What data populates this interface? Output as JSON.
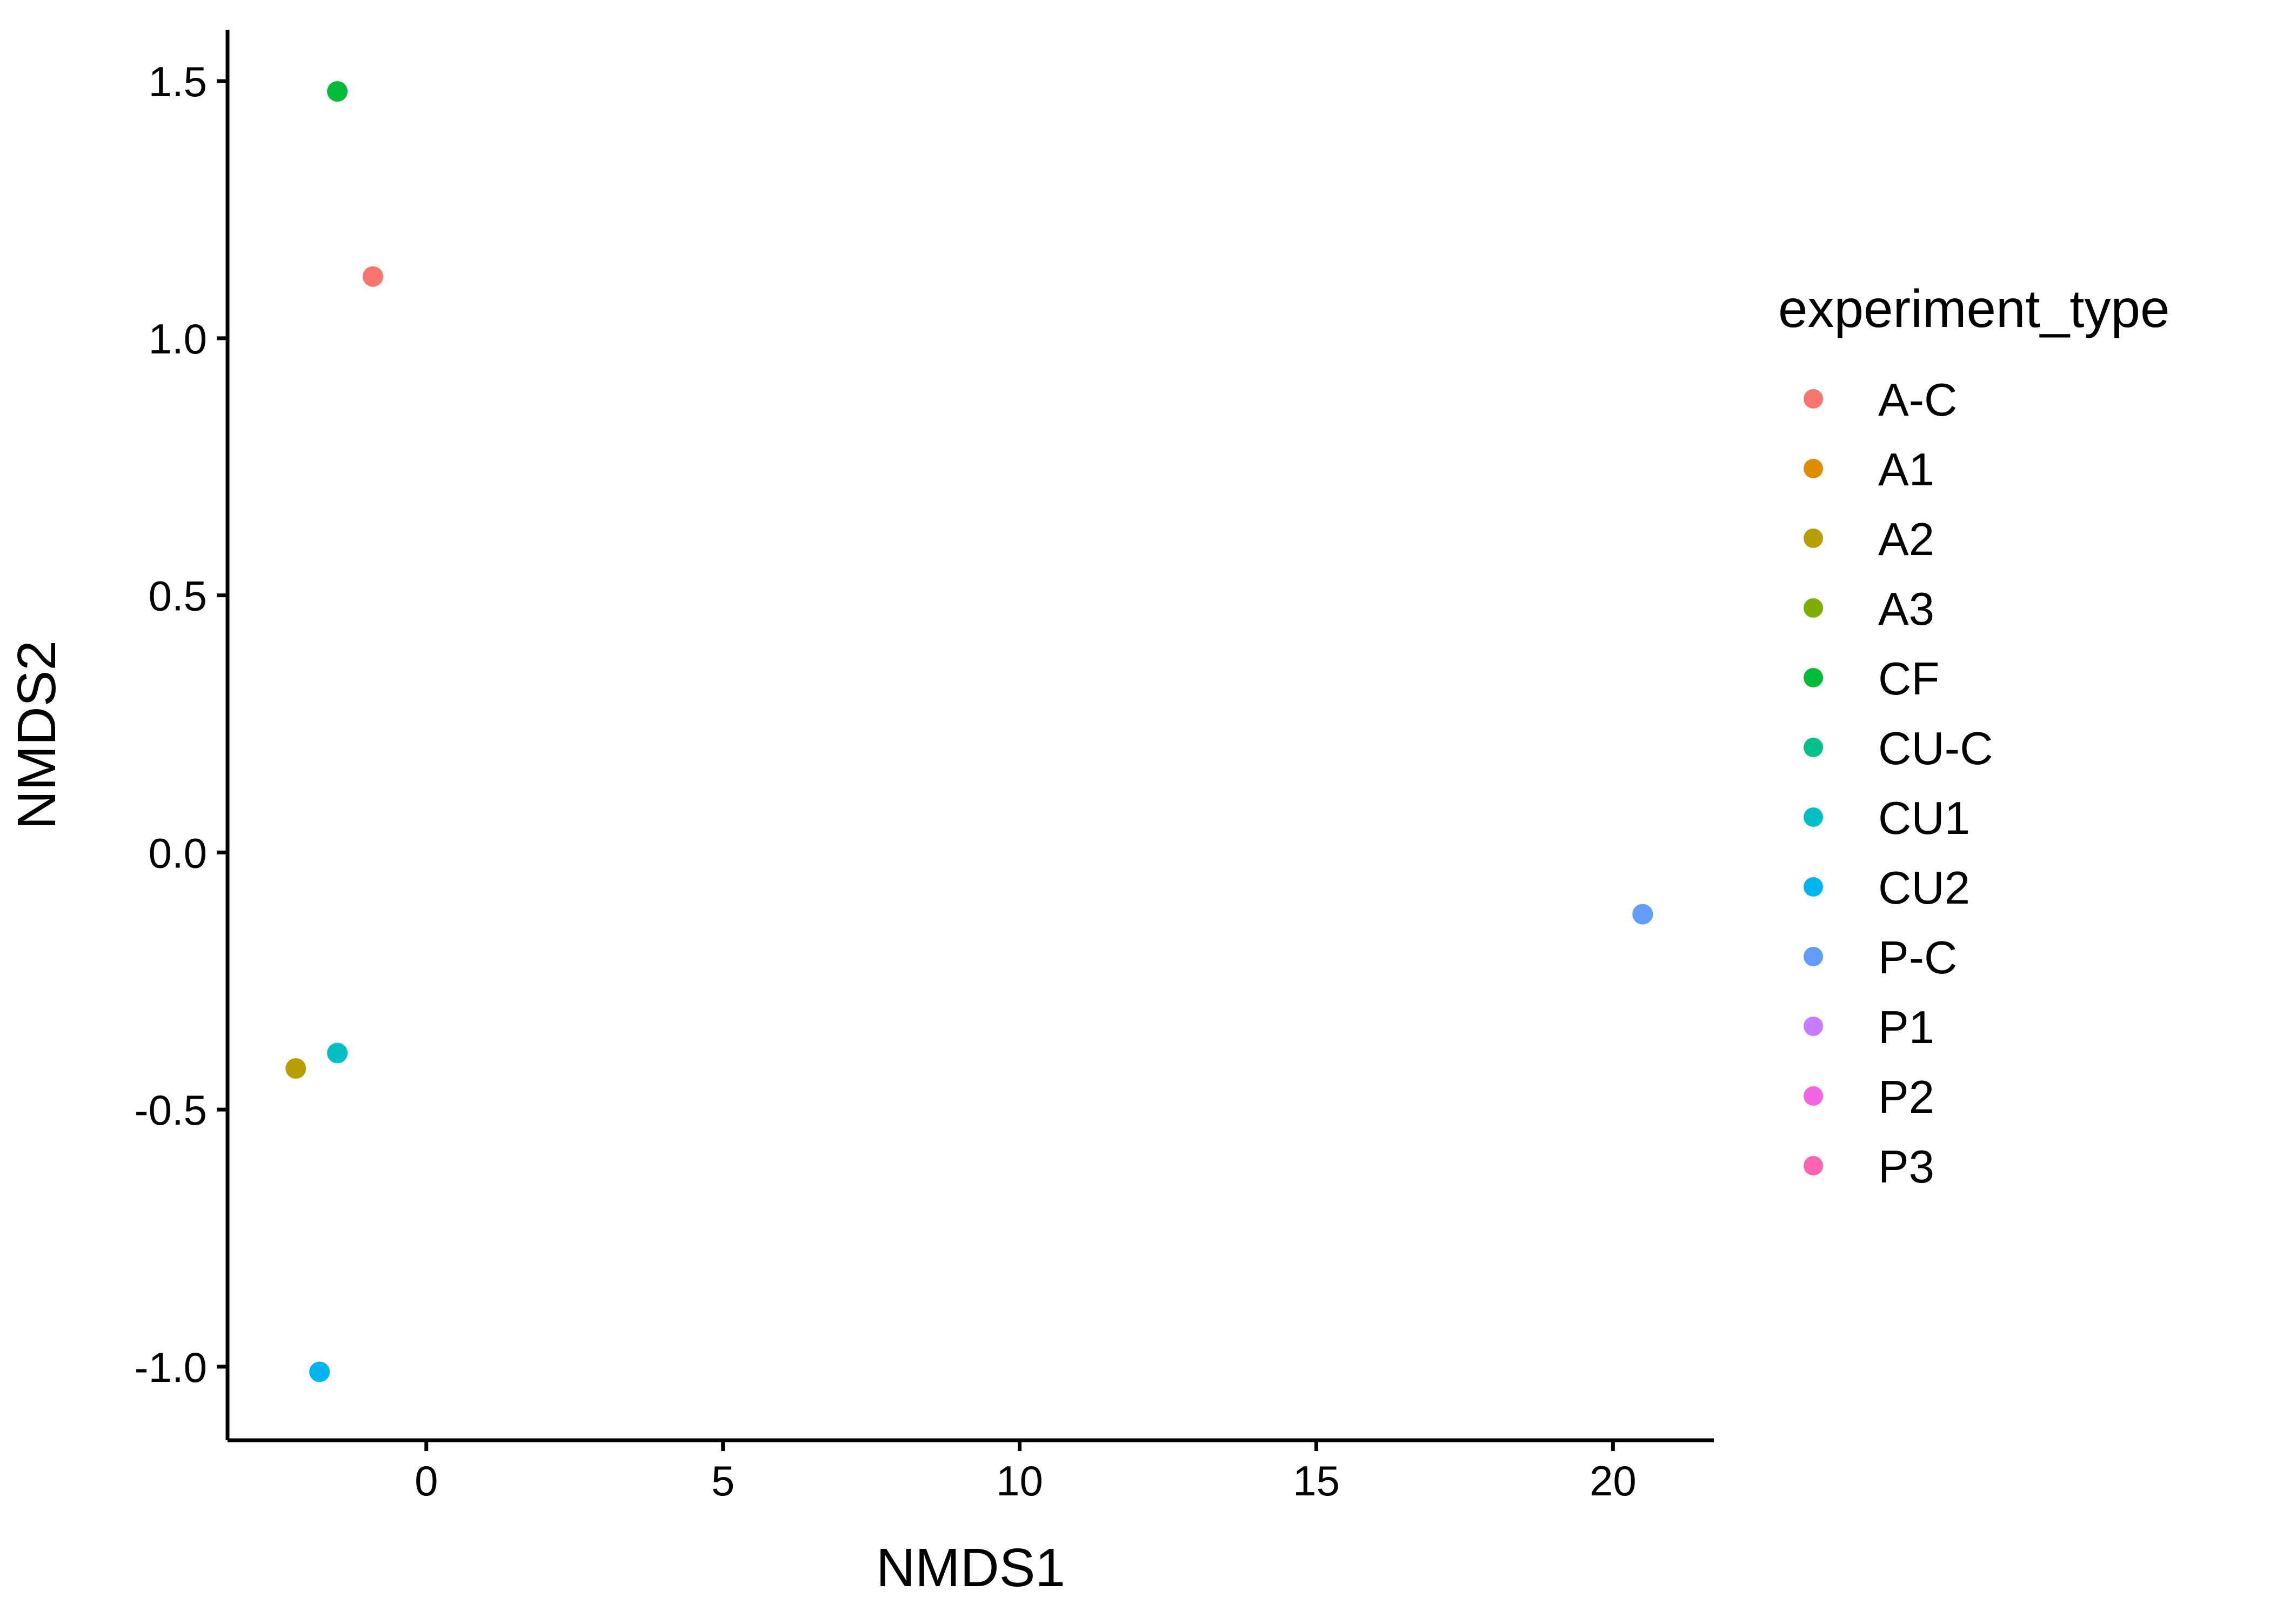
{
  "chart_data": {
    "type": "scatter",
    "title": "",
    "xlabel": "NMDS1",
    "ylabel": "NMDS2",
    "xlim": [
      -3.35,
      21.7
    ],
    "ylim": [
      -1.143,
      1.6
    ],
    "x_ticks": [
      0,
      5,
      10,
      15,
      20
    ],
    "x_tick_labels": [
      "0",
      "5",
      "10",
      "15",
      "20"
    ],
    "y_ticks": [
      -1.0,
      -0.5,
      0.0,
      0.5,
      1.0,
      1.5
    ],
    "y_tick_labels": [
      "-1.0",
      "-0.5",
      "0.0",
      "0.5",
      "1.0",
      "1.5"
    ],
    "grid": false,
    "legend": {
      "title": "experiment_type",
      "placement": "right",
      "entries": [
        {
          "name": "A-C",
          "color": "#F8766D"
        },
        {
          "name": "A1",
          "color": "#DE8C00"
        },
        {
          "name": "A2",
          "color": "#B79F00"
        },
        {
          "name": "A3",
          "color": "#7CAE00"
        },
        {
          "name": "CF",
          "color": "#00BA38"
        },
        {
          "name": "CU-C",
          "color": "#00C08B"
        },
        {
          "name": "CU1",
          "color": "#00BFC4"
        },
        {
          "name": "CU2",
          "color": "#00B4F0"
        },
        {
          "name": "P-C",
          "color": "#619CFF"
        },
        {
          "name": "P1",
          "color": "#C77CFF"
        },
        {
          "name": "P2",
          "color": "#F564E3"
        },
        {
          "name": "P3",
          "color": "#FF64B0"
        }
      ]
    },
    "points": [
      {
        "group": "A-C",
        "x": -0.9,
        "y": 1.12
      },
      {
        "group": "CF",
        "x": -1.5,
        "y": 1.48
      },
      {
        "group": "A2",
        "x": -2.2,
        "y": -0.42
      },
      {
        "group": "CU1",
        "x": -1.5,
        "y": -0.39
      },
      {
        "group": "CU2",
        "x": -1.8,
        "y": -1.01
      },
      {
        "group": "P-C",
        "x": 20.5,
        "y": -0.12
      }
    ]
  }
}
